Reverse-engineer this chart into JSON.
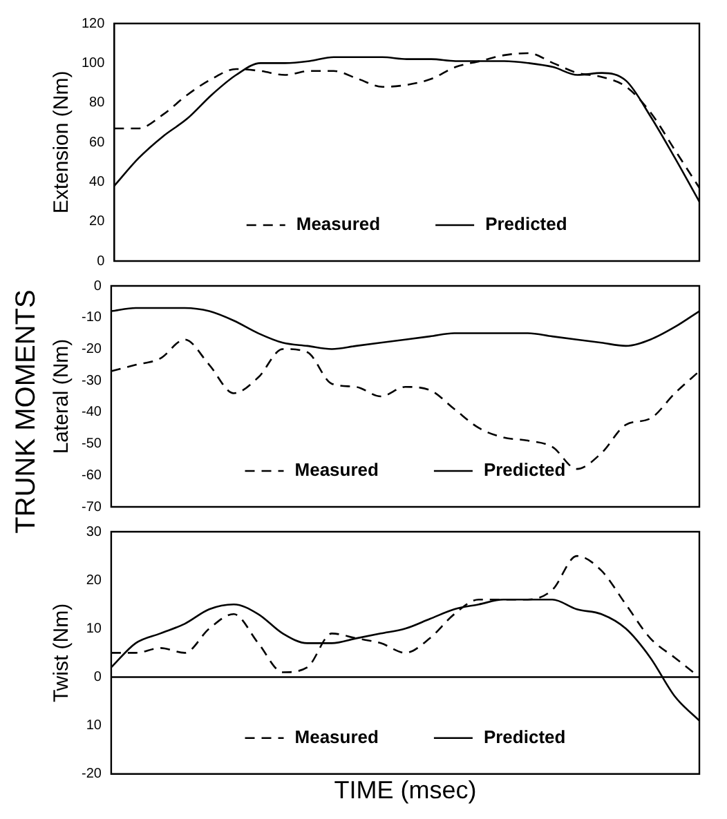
{
  "chart_data": [
    {
      "type": "line",
      "ylabel": "Extension (Nm)",
      "annotations": [
        "TRUNK MOMENTS"
      ],
      "categories": [
        null,
        null,
        null,
        null,
        null,
        null,
        null,
        null,
        null,
        null,
        null,
        null,
        null,
        null,
        null,
        null,
        null,
        null,
        null,
        null,
        null,
        null,
        null,
        null,
        null
      ],
      "ylim": [
        0,
        120
      ],
      "yticks": [
        0,
        20,
        40,
        60,
        80,
        100,
        120
      ],
      "tick_labels": "y",
      "grid": false,
      "legend": "bottom",
      "marker": "none",
      "series": [
        {
          "name": "Measured",
          "color": "#000000",
          "line_style": "dashed",
          "values": [
            67,
            67,
            74,
            84,
            92,
            97,
            96,
            94,
            96,
            96,
            92,
            88,
            89,
            92,
            98,
            101,
            104,
            105,
            100,
            95,
            93,
            88,
            75,
            56,
            37
          ]
        },
        {
          "name": "Predicted",
          "color": "#000000",
          "line_style": "solid",
          "values": [
            38,
            52,
            63,
            72,
            84,
            94,
            100,
            100,
            101,
            103,
            103,
            103,
            102,
            102,
            101,
            101,
            101,
            100,
            98,
            94,
            95,
            91,
            73,
            52,
            30
          ]
        }
      ]
    },
    {
      "type": "line",
      "ylabel": "Lateral (Nm)",
      "categories": [
        null,
        null,
        null,
        null,
        null,
        null,
        null,
        null,
        null,
        null,
        null,
        null,
        null,
        null,
        null,
        null,
        null,
        null,
        null,
        null,
        null,
        null,
        null,
        null,
        null
      ],
      "ylim": [
        -70,
        0
      ],
      "yticks": [
        -70,
        -60,
        -50,
        -40,
        -30,
        -20,
        -10,
        0
      ],
      "tick_labels": "y",
      "grid": false,
      "legend": "bottom",
      "marker": "none",
      "series": [
        {
          "name": "Measured",
          "color": "#000000",
          "line_style": "dashed",
          "values": [
            -27,
            -25,
            -23,
            -17,
            -25,
            -34,
            -29,
            -20,
            -21,
            -31,
            -32,
            -35,
            -32,
            -33,
            -39,
            -45,
            -48,
            -49,
            -51,
            -58,
            -53,
            -44,
            -42,
            -34,
            -27
          ]
        },
        {
          "name": "Predicted",
          "color": "#000000",
          "line_style": "solid",
          "values": [
            -8,
            -7,
            -7,
            -7,
            -8,
            -11,
            -15,
            -18,
            -19,
            -20,
            -19,
            -18,
            -17,
            -16,
            -15,
            -15,
            -15,
            -15,
            -16,
            -17,
            -18,
            -19,
            -17,
            -13,
            -8
          ]
        }
      ]
    },
    {
      "type": "line",
      "ylabel": "Twist (Nm)",
      "xlabel": "TIME (msec)",
      "categories": [
        null,
        null,
        null,
        null,
        null,
        null,
        null,
        null,
        null,
        null,
        null,
        null,
        null,
        null,
        null,
        null,
        null,
        null,
        null,
        null,
        null,
        null,
        null,
        null,
        null
      ],
      "ylim": [
        -20,
        30
      ],
      "yticks": [
        -20,
        {
          "value": -10,
          "label": "10"
        },
        0,
        10,
        20,
        30
      ],
      "tick_labels": "y",
      "grid": false,
      "legend": "bottom",
      "marker": "none",
      "ref_lines": [
        {
          "axis": "y",
          "value": 0,
          "color": "#000000"
        }
      ],
      "series": [
        {
          "name": "Measured",
          "color": "#000000",
          "line_style": "dashed",
          "values": [
            5,
            5,
            6,
            5,
            10,
            13,
            7,
            1,
            2,
            9,
            8,
            7,
            5,
            8,
            13,
            16,
            16,
            16,
            18,
            25,
            22,
            15,
            8,
            4,
            0
          ]
        },
        {
          "name": "Predicted",
          "color": "#000000",
          "line_style": "solid",
          "values": [
            2,
            7,
            9,
            11,
            14,
            15,
            13,
            9,
            7,
            7,
            8,
            9,
            10,
            12,
            14,
            15,
            16,
            16,
            16,
            14,
            13,
            10,
            4,
            -4,
            -9
          ]
        }
      ]
    }
  ]
}
